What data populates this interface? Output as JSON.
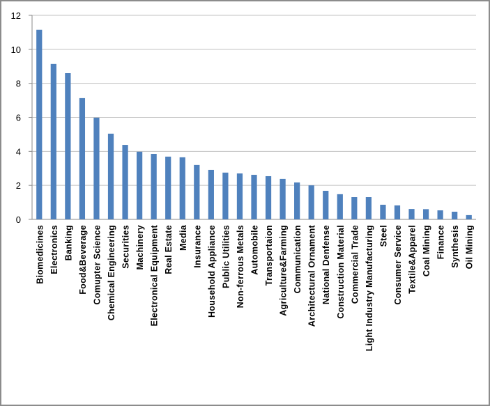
{
  "chart_data": {
    "type": "bar",
    "categories": [
      "Biomedicines",
      "Electronics",
      "Banking",
      "Food&Beverage",
      "Comupter Science",
      "Chemical Engineering",
      "Securities",
      "Machinery",
      "Electronical Equipment",
      "Real Estate",
      "Media",
      "Insurance",
      "Household Appliance",
      "Public Utilities",
      "Non-ferrous Metals",
      "Automobile",
      "Transportaion",
      "Agriculture&Farming",
      "Communication",
      "Architectural Ornament",
      "National Denfense",
      "Construction Material",
      "Commercial Trade",
      "Light Industry Manufacturing",
      "Steel",
      "Consumer Service",
      "Textile&Apparel",
      "Coal Mining",
      "Finance",
      "Synthesis",
      "Oil Mining"
    ],
    "values": [
      11.15,
      9.14,
      8.6,
      7.13,
      5.98,
      5.04,
      4.38,
      3.98,
      3.85,
      3.69,
      3.65,
      3.2,
      2.91,
      2.75,
      2.7,
      2.62,
      2.54,
      2.38,
      2.17,
      2.0,
      1.68,
      1.48,
      1.31,
      1.31,
      0.86,
      0.82,
      0.61,
      0.6,
      0.53,
      0.45,
      0.25
    ],
    "color": "#4f81bd",
    "ylim": [
      0,
      12
    ],
    "yticks": [
      0,
      2,
      4,
      6,
      8,
      10,
      12
    ],
    "grid": true
  }
}
